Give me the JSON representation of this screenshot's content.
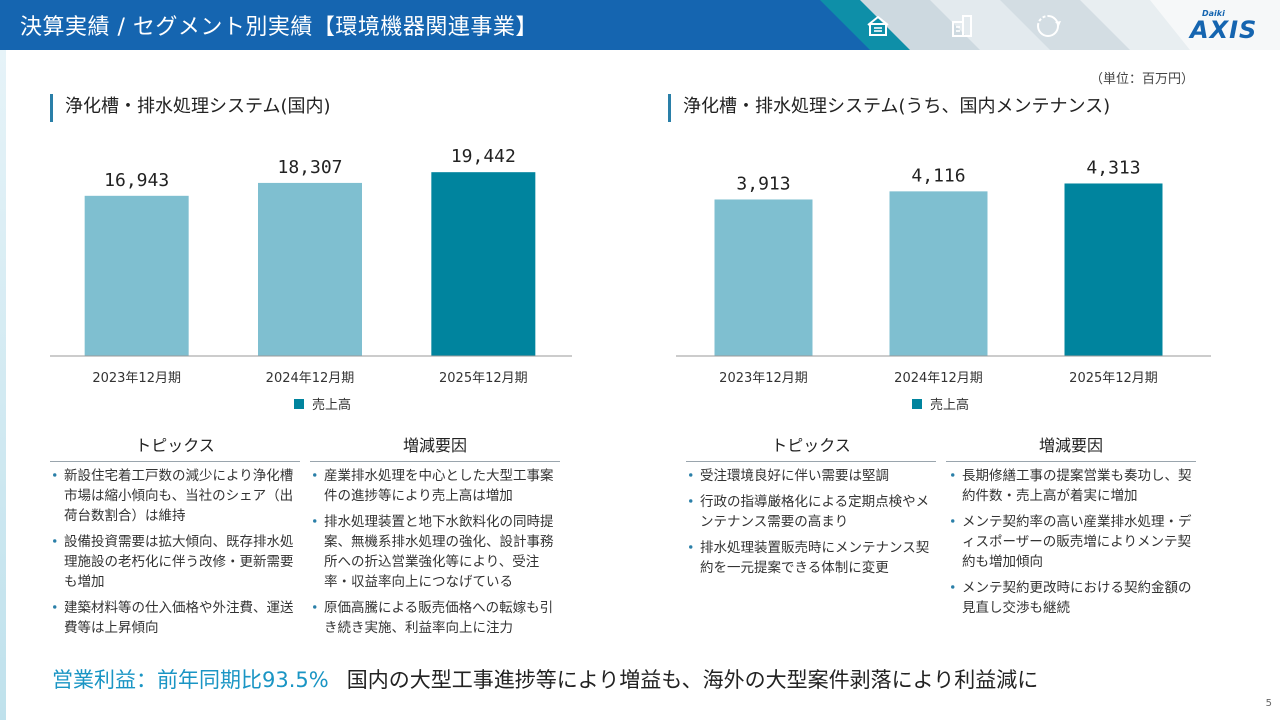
{
  "header": {
    "title": "決算実績 / セグメント別実績【環境機器関連事業】",
    "logo_small": "Daiki",
    "logo_main": "AXIS",
    "icons": [
      "house-icon",
      "building-icon",
      "recycle-icon"
    ]
  },
  "unit_label": "（単位：百万円）",
  "left_section": {
    "title": "浄化槽・排水処理システム(国内)",
    "topics_heading": "トピックス",
    "topics": [
      "新設住宅着工戸数の減少により浄化槽市場は縮小傾向も、当社のシェア（出荷台数割合）は維持",
      "設備投資需要は拡大傾向、既存排水処理施設の老朽化に伴う改修・更新需要も増加",
      "建築材料等の仕入価格や外注費、運送費等は上昇傾向"
    ],
    "factors_heading": "増減要因",
    "factors": [
      "産業排水処理を中心とした大型工事案件の進捗等により売上高は増加",
      "排水処理装置と地下水飲料化の同時提案、無機系排水処理の強化、設計事務所への折込営業強化等により、受注率・収益率向上につなげている",
      "原価高騰による販売価格への転嫁も引き続き実施、利益率向上に注力"
    ]
  },
  "right_section": {
    "title": "浄化槽・排水処理システム(うち、国内メンテナンス)",
    "topics_heading": "トピックス",
    "topics": [
      "受注環境良好に伴い需要は堅調",
      "行政の指導厳格化による定期点検やメンテナンス需要の高まり",
      "排水処理装置販売時にメンテナンス契約を一元提案できる体制に変更"
    ],
    "factors_heading": "増減要因",
    "factors": [
      "長期修繕工事の提案営業も奏功し、契約件数・売上高が着実に増加",
      "メンテ契約率の高い産業排水処理・ディスポーザーの販売増によりメンテ契約も増加傾向",
      "メンテ契約更改時における契約金額の見直し交渉も継続"
    ]
  },
  "chart_data": [
    {
      "type": "bar",
      "title": "浄化槽・排水処理システム(国内)",
      "categories": [
        "2023年12月期",
        "2024年12月期",
        "2025年12月期"
      ],
      "values": [
        16943,
        18307,
        19442
      ],
      "value_labels": [
        "16,943",
        "18,307",
        "19,442"
      ],
      "legend": "売上高",
      "ylim": [
        0,
        22000
      ],
      "colors": [
        "#7fbfd0",
        "#7fbfd0",
        "#00849e"
      ]
    },
    {
      "type": "bar",
      "title": "浄化槽・排水処理システム(うち、国内メンテナンス)",
      "categories": [
        "2023年12月期",
        "2024年12月期",
        "2025年12月期"
      ],
      "values": [
        3913,
        4116,
        4313
      ],
      "value_labels": [
        "3,913",
        "4,116",
        "4,313"
      ],
      "legend": "売上高",
      "ylim": [
        0,
        5200
      ],
      "colors": [
        "#7fbfd0",
        "#7fbfd0",
        "#00849e"
      ]
    }
  ],
  "footer": {
    "highlight": "営業利益：前年同期比93.5%",
    "text": "国内の大型工事進捗等により増益も、海外の大型案件剥落により利益減に"
  },
  "page_number": "5",
  "colors": {
    "header": "#1565b0",
    "bar_light": "#7fbfd0",
    "bar_dark": "#00849e",
    "accent": "#1a95c4"
  }
}
